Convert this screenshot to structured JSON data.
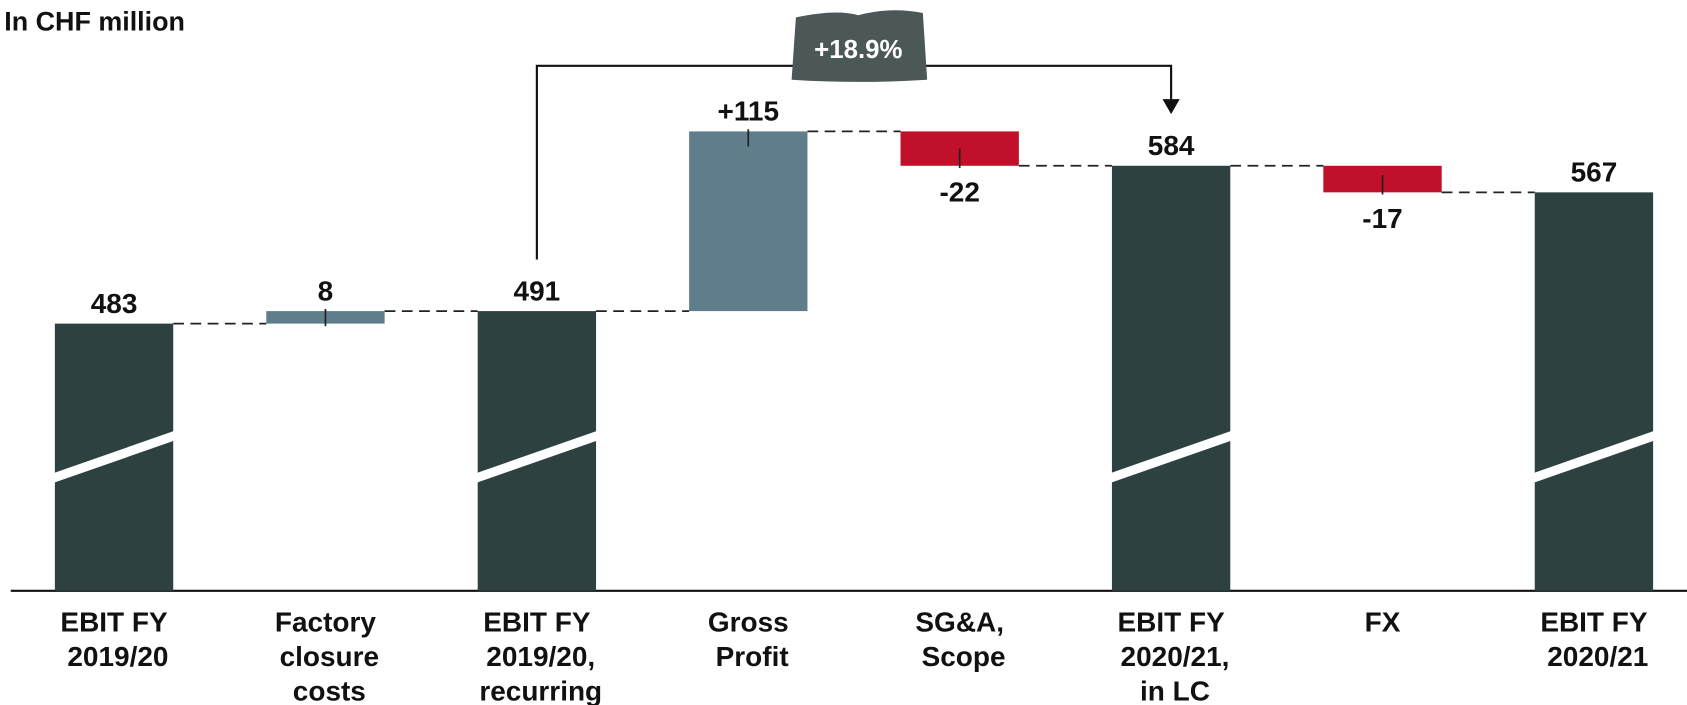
{
  "chart_data": {
    "type": "waterfall",
    "subtitle": "In CHF million",
    "categories": [
      "EBIT FY 2019/20",
      "Factory closure costs",
      "EBIT FY 2019/20, recurring",
      "Gross Profit",
      "SG&A, Scope",
      "EBIT FY 2020/21, in LC",
      "FX",
      "EBIT FY 2020/21"
    ],
    "measures": [
      "total",
      "relative",
      "total",
      "relative",
      "relative",
      "total",
      "relative",
      "total"
    ],
    "values": [
      483,
      8,
      491,
      115,
      -22,
      584,
      -17,
      567
    ],
    "value_labels": [
      "483",
      "8",
      "491",
      "+115",
      "-22",
      "584",
      "-17",
      "567"
    ],
    "colors": {
      "total": "#2c4140",
      "increase": "#607d8b",
      "decrease": "#c0102a"
    },
    "ylim": [
      312,
      690
    ],
    "annotations": [
      {
        "text": "+18.9%",
        "from": 2,
        "to": 5
      }
    ]
  }
}
